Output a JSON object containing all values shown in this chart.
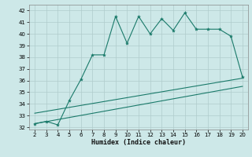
{
  "xlabel": "Humidex (Indice chaleur)",
  "xlim": [
    1.5,
    20.5
  ],
  "ylim": [
    31.8,
    42.5
  ],
  "xticks": [
    2,
    3,
    4,
    5,
    6,
    7,
    8,
    9,
    10,
    11,
    12,
    13,
    14,
    15,
    16,
    17,
    18,
    19,
    20
  ],
  "yticks": [
    32,
    33,
    34,
    35,
    36,
    37,
    38,
    39,
    40,
    41,
    42
  ],
  "bg_color": "#cde8e8",
  "grid_color": "#b0cccc",
  "line_color": "#1a7a6a",
  "main_x": [
    2,
    3,
    4,
    5,
    6,
    7,
    8,
    9,
    10,
    11,
    12,
    13,
    14,
    15,
    16,
    17,
    18,
    19,
    20
  ],
  "main_y": [
    32.3,
    32.5,
    32.2,
    34.3,
    36.1,
    38.2,
    38.2,
    41.5,
    39.2,
    41.5,
    40.0,
    41.3,
    40.3,
    41.8,
    40.4,
    40.4,
    40.4,
    39.8,
    36.3
  ],
  "line2_x": [
    2,
    20
  ],
  "line2_y": [
    33.2,
    36.2
  ],
  "line3_x": [
    2,
    20
  ],
  "line3_y": [
    32.3,
    35.5
  ]
}
